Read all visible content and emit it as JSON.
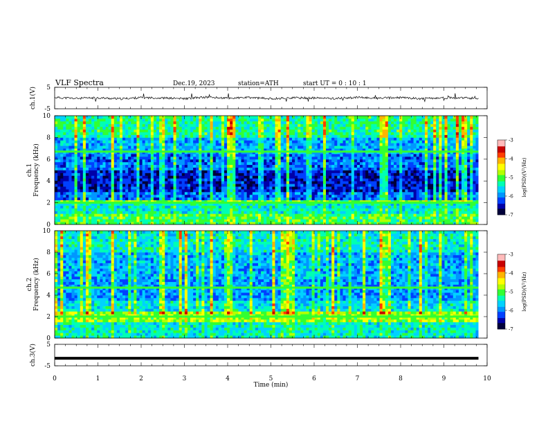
{
  "header": {
    "title": "VLF  Spectra",
    "date": "Dec.19, 2023",
    "station": "station=ATH",
    "start": "start  UT  =   0 : 10 : 1"
  },
  "colors": {
    "palette": [
      "#00003a",
      "#0000a8",
      "#0040ff",
      "#0096ff",
      "#00d2ff",
      "#00ffb4",
      "#32ff32",
      "#b4ff00",
      "#ffff00",
      "#ffb400",
      "#ff3c00",
      "#c80000",
      "#ffbaba",
      "#ffffff"
    ],
    "waveform": "#000000",
    "axis": "#000000"
  },
  "chart_data": [
    {
      "type": "line",
      "name": "waveform-ch1",
      "ylabel": "ch.1(V)",
      "ylim": [
        -5,
        5
      ],
      "yticks": [
        "5",
        "-5"
      ],
      "x": [
        0,
        0.5,
        1,
        1.5,
        2,
        2.5,
        3,
        3.5,
        4,
        4.5,
        5,
        5.5,
        6,
        6.5,
        7,
        7.5,
        8,
        8.5,
        9,
        9.5,
        9.8
      ],
      "values": [
        0.3,
        -0.2,
        0.1,
        -0.4,
        0.2,
        0.0,
        -0.3,
        0.4,
        -0.1,
        0.2,
        -0.3,
        0.1,
        0.0,
        -0.2,
        0.3,
        -0.1,
        0.2,
        -0.3,
        0.1,
        0.0,
        -0.2
      ],
      "envelope": [
        -1.6,
        2.2
      ]
    },
    {
      "type": "heatmap",
      "name": "spectrogram-ch1",
      "ylabel": "ch.1\nFrequency  (kHz)",
      "ylim": [
        0,
        10
      ],
      "yticks": [
        "10",
        "8",
        "6",
        "4",
        "2",
        "0"
      ],
      "colorbar": {
        "label": "log(PSD)(V²/Hz)",
        "range": [
          -7,
          -3
        ],
        "ticks": [
          "-3",
          "-4",
          "-5",
          "-6",
          "-7"
        ]
      },
      "frequency_bands_kHz": [
        {
          "from": 0,
          "to": 1.0,
          "level": -4.9
        },
        {
          "from": 1.0,
          "to": 1.8,
          "level": -5.3
        },
        {
          "from": 1.8,
          "to": 2.2,
          "level": -4.7
        },
        {
          "from": 2.2,
          "to": 3.0,
          "level": -6.0
        },
        {
          "from": 3.0,
          "to": 5.0,
          "level": -6.4
        },
        {
          "from": 5.0,
          "to": 6.5,
          "level": -6.0
        },
        {
          "from": 6.5,
          "to": 8.0,
          "level": -5.7
        },
        {
          "from": 8.0,
          "to": 10.0,
          "level": -5.1
        }
      ],
      "tones_kHz": [
        2.0,
        6.7
      ]
    },
    {
      "type": "heatmap",
      "name": "spectrogram-ch2",
      "ylabel": "ch.2\nFrequency  (kHz)",
      "ylim": [
        0,
        10
      ],
      "yticks": [
        "10",
        "8",
        "6",
        "4",
        "2",
        "0"
      ],
      "colorbar": {
        "label": "log(PSD)(V²/Hz)",
        "range": [
          -7,
          -3
        ],
        "ticks": [
          "-3",
          "-4",
          "-5",
          "-6",
          "-7"
        ]
      },
      "frequency_bands_kHz": [
        {
          "from": 0,
          "to": 1.5,
          "level": -5.3
        },
        {
          "from": 1.5,
          "to": 2.3,
          "level": -4.6
        },
        {
          "from": 2.3,
          "to": 3.5,
          "level": -5.4
        },
        {
          "from": 3.5,
          "to": 5.5,
          "level": -5.8
        },
        {
          "from": 5.5,
          "to": 8.0,
          "level": -5.7
        },
        {
          "from": 8.0,
          "to": 10.0,
          "level": -5.3
        }
      ],
      "tones_kHz": [
        2.0,
        4.7
      ]
    },
    {
      "type": "line",
      "name": "waveform-ch3",
      "ylabel": "ch.3(V)",
      "ylim": [
        -5,
        5
      ],
      "yticks": [
        "5",
        "-5"
      ],
      "x": [
        0,
        9.8
      ],
      "values": [
        -1.5,
        -1.5
      ]
    }
  ],
  "xaxis": {
    "xlabel": "Time  (min)",
    "xlim": [
      0,
      10
    ],
    "xticks": [
      "0",
      "1",
      "2",
      "3",
      "4",
      "5",
      "6",
      "7",
      "8",
      "9",
      "10"
    ],
    "data_end": 9.8
  }
}
